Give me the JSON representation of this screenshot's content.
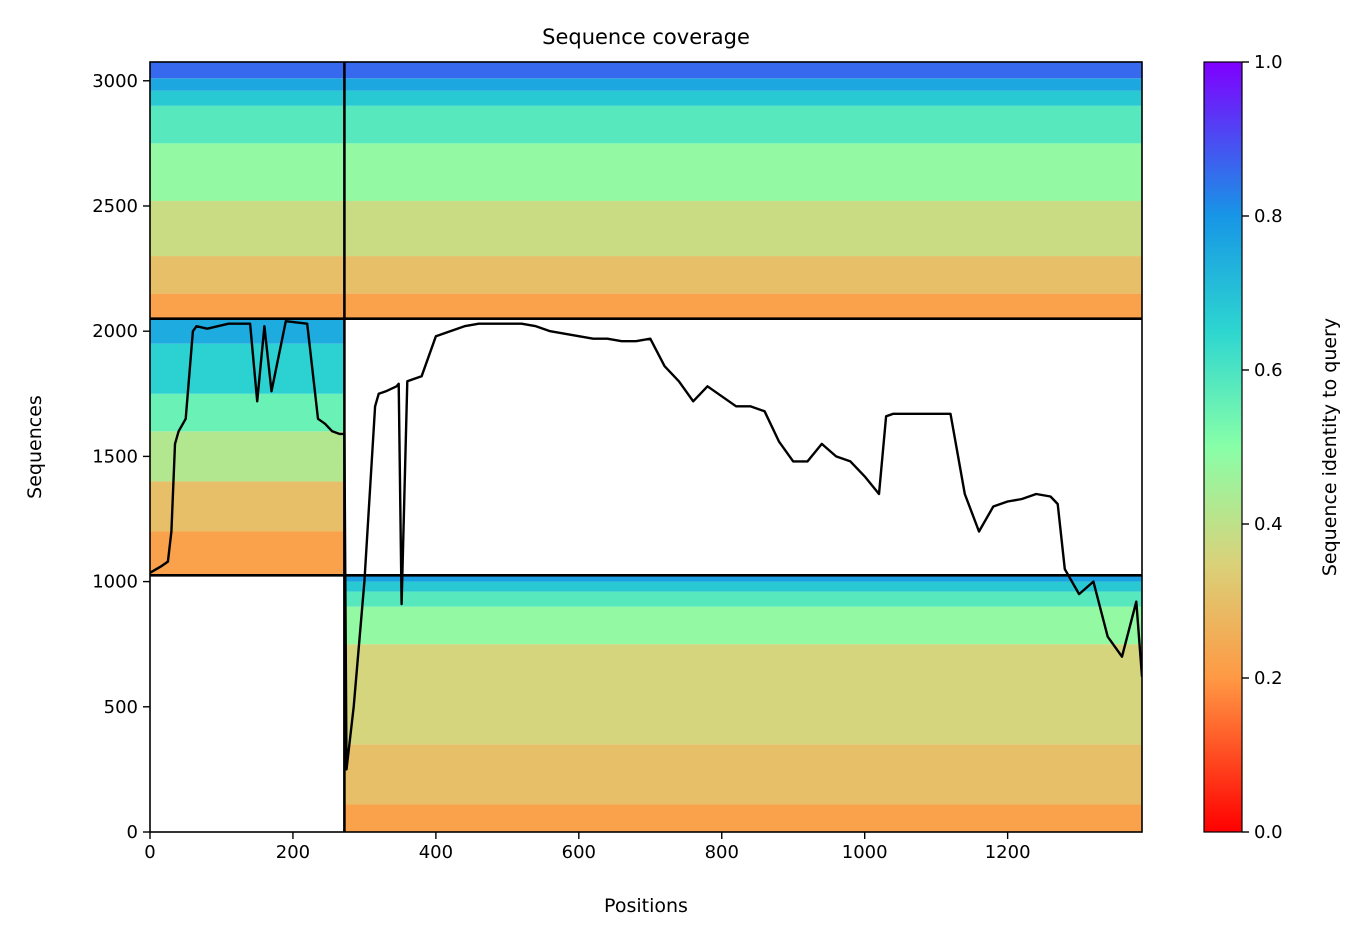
{
  "chart_data": {
    "type": "heatmap",
    "title": "Sequence coverage",
    "xlabel": "Positions",
    "ylabel": "Sequences",
    "colorbar_label": "Sequence identity to query",
    "xlim": [
      0,
      1388
    ],
    "ylim": [
      0,
      3075
    ],
    "xticks": [
      "0",
      "200",
      "400",
      "600",
      "800",
      "1000",
      "1200"
    ],
    "xtick_values": [
      0,
      200,
      400,
      600,
      800,
      1000,
      1200
    ],
    "yticks": [
      "0",
      "500",
      "1000",
      "1500",
      "2000",
      "2500",
      "3000"
    ],
    "ytick_values": [
      0,
      500,
      1000,
      1500,
      2000,
      2500,
      3000
    ],
    "colorbar_ticks": [
      "0.0",
      "0.2",
      "0.4",
      "0.6",
      "0.8",
      "1.0"
    ],
    "colorbar_tick_values": [
      0.0,
      0.2,
      0.4,
      0.6,
      0.8,
      1.0
    ],
    "colormap": "rainbow_r",
    "grid": false,
    "chain_boundaries_x": [
      272
    ],
    "block_boundaries_y": [
      1025,
      2050
    ],
    "blocks": [
      {
        "name": "chain-1-only",
        "x_range": [
          0,
          272
        ],
        "y_range": [
          1025,
          2050
        ],
        "identity_bands": [
          {
            "y": [
              1025,
              1200
            ],
            "identity": 0.22
          },
          {
            "y": [
              1200,
              1400
            ],
            "identity": 0.3
          },
          {
            "y": [
              1400,
              1600
            ],
            "identity": 0.42
          },
          {
            "y": [
              1600,
              1750
            ],
            "identity": 0.55
          },
          {
            "y": [
              1750,
              1950
            ],
            "identity": 0.66
          },
          {
            "y": [
              1950,
              2050
            ],
            "identity": 0.75
          }
        ]
      },
      {
        "name": "chain-2-only",
        "x_range": [
          272,
          1388
        ],
        "y_range": [
          0,
          1025
        ],
        "identity_bands": [
          {
            "y": [
              0,
              110
            ],
            "identity": 0.22
          },
          {
            "y": [
              110,
              350
            ],
            "identity": 0.3
          },
          {
            "y": [
              350,
              750
            ],
            "identity": 0.36
          },
          {
            "y": [
              750,
              900
            ],
            "identity": 0.48
          },
          {
            "y": [
              900,
              960
            ],
            "identity": 0.58
          },
          {
            "y": [
              960,
              1000
            ],
            "identity": 0.68
          },
          {
            "y": [
              1000,
              1025
            ],
            "identity": 0.78
          }
        ]
      },
      {
        "name": "paired",
        "x_range": [
          0,
          1388
        ],
        "y_range": [
          2050,
          3075
        ],
        "identity_bands": [
          {
            "y": [
              2050,
              2150
            ],
            "identity": 0.22
          },
          {
            "y": [
              2150,
              2300
            ],
            "identity": 0.3
          },
          {
            "y": [
              2300,
              2520
            ],
            "identity": 0.38
          },
          {
            "y": [
              2520,
              2750
            ],
            "identity": 0.48
          },
          {
            "y": [
              2750,
              2900
            ],
            "identity": 0.58
          },
          {
            "y": [
              2900,
              2960
            ],
            "identity": 0.68
          },
          {
            "y": [
              2960,
              3010
            ],
            "identity": 0.76
          },
          {
            "y": [
              3010,
              3075
            ],
            "identity": 0.86
          }
        ]
      }
    ],
    "coverage_line": {
      "x": [
        0,
        15,
        25,
        30,
        35,
        40,
        50,
        60,
        65,
        80,
        95,
        110,
        140,
        150,
        160,
        170,
        190,
        220,
        235,
        245,
        255,
        265,
        272,
        275,
        285,
        300,
        315,
        320,
        330,
        345,
        348,
        352,
        360,
        370,
        380,
        400,
        420,
        440,
        460,
        480,
        500,
        520,
        540,
        560,
        580,
        600,
        620,
        640,
        660,
        680,
        700,
        720,
        740,
        760,
        780,
        800,
        820,
        840,
        860,
        880,
        900,
        920,
        940,
        960,
        980,
        1000,
        1020,
        1030,
        1040,
        1060,
        1080,
        1100,
        1120,
        1140,
        1160,
        1180,
        1200,
        1220,
        1240,
        1260,
        1270,
        1280,
        1300,
        1320,
        1340,
        1360,
        1380,
        1388
      ],
      "y": [
        1035,
        1060,
        1080,
        1200,
        1550,
        1600,
        1650,
        2000,
        2020,
        2010,
        2020,
        2030,
        2030,
        1720,
        2020,
        1760,
        2040,
        2030,
        1650,
        1630,
        1600,
        1590,
        1590,
        250,
        500,
        1000,
        1700,
        1750,
        1760,
        1780,
        1790,
        910,
        1800,
        1810,
        1820,
        1980,
        2000,
        2020,
        2030,
        2030,
        2030,
        2030,
        2020,
        2000,
        1990,
        1980,
        1970,
        1970,
        1960,
        1960,
        1970,
        1860,
        1800,
        1720,
        1780,
        1740,
        1700,
        1700,
        1680,
        1560,
        1480,
        1480,
        1550,
        1500,
        1480,
        1420,
        1350,
        1660,
        1670,
        1670,
        1670,
        1670,
        1670,
        1350,
        1200,
        1300,
        1320,
        1330,
        1350,
        1340,
        1310,
        1050,
        950,
        1000,
        780,
        700,
        920,
        620
      ]
    }
  }
}
